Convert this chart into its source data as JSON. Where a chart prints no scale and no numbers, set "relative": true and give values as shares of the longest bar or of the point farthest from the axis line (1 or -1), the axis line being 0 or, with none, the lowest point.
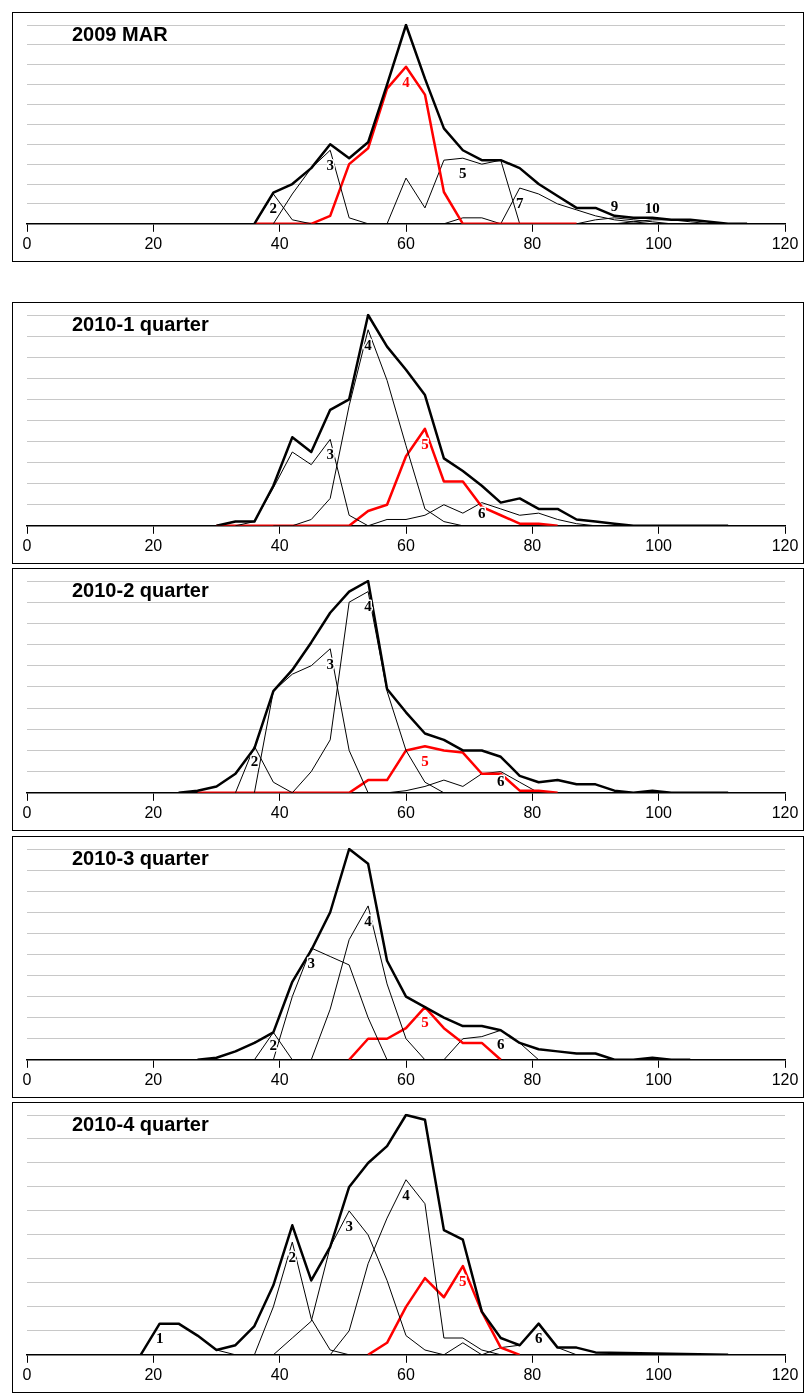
{
  "chart_data": [
    {
      "type": "line",
      "title": "2009 MAR",
      "relative": true,
      "xlim": [
        0,
        120
      ],
      "xticks": [
        0,
        20,
        40,
        60,
        80,
        100,
        120
      ],
      "grid": "y",
      "legend": false,
      "marker": "none",
      "line_style": "solid",
      "series": [
        {
          "color": "#000000",
          "x": [
            36,
            39,
            42,
            45,
            48,
            51,
            54,
            57,
            60,
            63,
            66,
            69,
            72,
            75,
            78,
            81,
            84,
            87,
            90,
            93,
            96,
            99,
            102,
            105,
            108,
            111,
            114
          ],
          "values": [
            0,
            0.157,
            0.2,
            0.28,
            0.4,
            0.33,
            0.41,
            0.7,
            1,
            0.73,
            0.48,
            0.37,
            0.32,
            0.32,
            0.28,
            0.2,
            0.14,
            0.08,
            0.08,
            0.04,
            0.03,
            0.03,
            0.02,
            0.02,
            0.01,
            0,
            0
          ]
        },
        {
          "name": "2",
          "color": "#000000",
          "x": [
            36,
            39,
            42,
            45
          ],
          "values": [
            0,
            0.15,
            0.02,
            0
          ]
        },
        {
          "name": "3",
          "color": "#000000",
          "x": [
            39,
            42,
            45,
            48,
            51,
            54
          ],
          "values": [
            0,
            0.15,
            0.28,
            0.37,
            0.03,
            0
          ]
        },
        {
          "name": "4",
          "color": "#ff0000",
          "x": [
            36,
            39,
            42,
            45,
            48,
            51,
            54,
            57,
            60,
            63,
            66,
            69,
            72,
            75,
            78,
            81,
            84,
            87
          ],
          "values": [
            0,
            0,
            0,
            0,
            0.04,
            0.3,
            0.38,
            0.68,
            0.79,
            0.65,
            0.16,
            0,
            0,
            0,
            0,
            0,
            0,
            0
          ]
        },
        {
          "name": "5",
          "color": "#000000",
          "x": [
            57,
            60,
            63,
            66,
            69,
            72,
            75,
            78
          ],
          "values": [
            0,
            0.23,
            0.08,
            0.32,
            0.33,
            0.3,
            0.32,
            0
          ]
        },
        {
          "color": "#000000",
          "x": [
            66,
            69,
            72,
            75
          ],
          "values": [
            0,
            0.03,
            0.03,
            0
          ]
        },
        {
          "name": "7",
          "color": "#000000",
          "x": [
            75,
            78,
            81,
            84,
            87,
            90,
            93,
            96,
            99
          ],
          "values": [
            0,
            0.18,
            0.15,
            0.1,
            0.07,
            0.04,
            0.02,
            0.01,
            0
          ]
        },
        {
          "name": "9",
          "color": "#000000",
          "x": [
            87,
            90,
            93,
            96,
            99,
            102
          ],
          "values": [
            0,
            0.02,
            0.03,
            0.02,
            0.01,
            0
          ]
        },
        {
          "name": "10",
          "color": "#000000",
          "x": [
            93,
            96,
            99,
            102,
            105,
            108
          ],
          "values": [
            0,
            0.01,
            0.02,
            0.02,
            0.01,
            0
          ]
        }
      ]
    },
    {
      "type": "line",
      "title": "2010-1 quarter",
      "relative": true,
      "xlim": [
        0,
        120
      ],
      "xticks": [
        0,
        20,
        40,
        60,
        80,
        100,
        120
      ],
      "grid": "y",
      "legend": false,
      "marker": "none",
      "line_style": "solid",
      "series": [
        {
          "color": "#000000",
          "x": [
            30,
            33,
            36,
            39,
            42,
            45,
            48,
            51,
            54,
            57,
            60,
            63,
            66,
            69,
            72,
            75,
            78,
            81,
            84,
            87,
            90,
            93,
            96,
            111
          ],
          "values": [
            0,
            0.02,
            0.02,
            0.19,
            0.42,
            0.35,
            0.55,
            0.6,
            1,
            0.85,
            0.74,
            0.62,
            0.32,
            0.26,
            0.19,
            0.11,
            0.13,
            0.08,
            0.08,
            0.03,
            0.02,
            0.01,
            0,
            0
          ]
        },
        {
          "name": "3",
          "color": "#000000",
          "x": [
            33,
            36,
            39,
            42,
            45,
            48,
            51,
            54
          ],
          "values": [
            0,
            0.02,
            0.18,
            0.35,
            0.29,
            0.41,
            0.05,
            0
          ]
        },
        {
          "name": "4",
          "color": "#000000",
          "x": [
            39,
            42,
            45,
            48,
            51,
            54,
            57,
            60,
            63,
            66,
            69
          ],
          "values": [
            0,
            0,
            0.03,
            0.13,
            0.57,
            0.93,
            0.69,
            0.38,
            0.08,
            0.02,
            0
          ]
        },
        {
          "name": "5",
          "color": "#ff0000",
          "x": [
            30,
            51,
            54,
            57,
            60,
            63,
            66,
            69,
            72,
            75,
            78,
            81,
            84
          ],
          "values": [
            0,
            0,
            0.07,
            0.1,
            0.33,
            0.46,
            0.21,
            0.21,
            0.09,
            0.05,
            0.01,
            0.01,
            0
          ]
        },
        {
          "name": "6",
          "color": "#000000",
          "x": [
            54,
            57,
            60,
            63,
            66,
            69,
            72,
            75,
            78,
            81,
            84,
            87,
            90
          ],
          "values": [
            0,
            0.03,
            0.03,
            0.05,
            0.1,
            0.06,
            0.11,
            0.08,
            0.05,
            0.06,
            0.03,
            0.01,
            0
          ]
        }
      ]
    },
    {
      "type": "line",
      "title": "2010-2 quarter",
      "relative": true,
      "xlim": [
        0,
        120
      ],
      "xticks": [
        0,
        20,
        40,
        60,
        80,
        100,
        120
      ],
      "grid": "y",
      "legend": false,
      "marker": "none",
      "line_style": "solid",
      "series": [
        {
          "color": "#000000",
          "x": [
            24,
            27,
            30,
            33,
            36,
            39,
            42,
            45,
            48,
            51,
            54,
            57,
            60,
            63,
            66,
            69,
            72,
            75,
            78,
            81,
            84,
            87,
            90,
            93,
            96,
            99,
            102,
            111
          ],
          "values": [
            0,
            0.01,
            0.03,
            0.09,
            0.21,
            0.48,
            0.58,
            0.71,
            0.85,
            0.95,
            1,
            0.49,
            0.38,
            0.28,
            0.25,
            0.2,
            0.2,
            0.17,
            0.08,
            0.05,
            0.06,
            0.04,
            0.04,
            0.01,
            0,
            0.01,
            0,
            0
          ]
        },
        {
          "name": "2",
          "color": "#000000",
          "x": [
            33,
            36,
            39,
            42
          ],
          "values": [
            0,
            0.22,
            0.05,
            0
          ]
        },
        {
          "name": "3",
          "color": "#000000",
          "x": [
            36,
            39,
            42,
            45,
            48,
            51,
            54
          ],
          "values": [
            0,
            0.48,
            0.56,
            0.6,
            0.68,
            0.2,
            0
          ]
        },
        {
          "name": "4",
          "color": "#000000",
          "x": [
            42,
            45,
            48,
            51,
            54,
            57,
            60,
            63,
            66
          ],
          "values": [
            0,
            0.1,
            0.25,
            0.9,
            0.95,
            0.48,
            0.2,
            0.05,
            0
          ]
        },
        {
          "name": "5",
          "color": "#ff0000",
          "x": [
            27,
            51,
            54,
            57,
            60,
            63,
            66,
            69,
            72,
            75,
            78,
            81,
            84
          ],
          "values": [
            0,
            0,
            0.06,
            0.06,
            0.2,
            0.22,
            0.2,
            0.19,
            0.09,
            0.09,
            0.01,
            0.01,
            0
          ]
        },
        {
          "name": "6",
          "color": "#000000",
          "x": [
            57,
            60,
            63,
            66,
            69,
            72,
            75,
            78,
            81
          ],
          "values": [
            0,
            0.01,
            0.03,
            0.06,
            0.03,
            0.09,
            0.1,
            0.05,
            0
          ]
        }
      ]
    },
    {
      "type": "line",
      "title": "2010-3 quarter",
      "relative": true,
      "xlim": [
        0,
        120
      ],
      "xticks": [
        0,
        20,
        40,
        60,
        80,
        100,
        120
      ],
      "grid": "y",
      "legend": false,
      "marker": "none",
      "line_style": "solid",
      "series": [
        {
          "color": "#000000",
          "x": [
            27,
            30,
            33,
            36,
            39,
            42,
            45,
            48,
            51,
            54,
            57,
            60,
            63,
            66,
            69,
            72,
            75,
            78,
            81,
            84,
            87,
            90,
            93,
            96,
            99,
            102,
            105
          ],
          "values": [
            0,
            0.01,
            0.04,
            0.08,
            0.13,
            0.37,
            0.52,
            0.7,
            1,
            0.93,
            0.47,
            0.3,
            0.25,
            0.2,
            0.16,
            0.16,
            0.14,
            0.08,
            0.05,
            0.04,
            0.03,
            0.03,
            0,
            0,
            0.01,
            0,
            0
          ]
        },
        {
          "name": "2",
          "color": "#000000",
          "x": [
            36,
            39,
            42
          ],
          "values": [
            0,
            0.13,
            0
          ]
        },
        {
          "name": "3",
          "color": "#000000",
          "x": [
            39,
            42,
            45,
            48,
            51,
            54,
            57
          ],
          "values": [
            0,
            0.3,
            0.53,
            0.49,
            0.45,
            0.2,
            0
          ]
        },
        {
          "name": "4",
          "color": "#000000",
          "x": [
            45,
            48,
            51,
            54,
            57,
            60,
            63
          ],
          "values": [
            0,
            0.24,
            0.57,
            0.73,
            0.36,
            0.1,
            0
          ]
        },
        {
          "name": "5",
          "color": "#ff0000",
          "x": [
            51,
            54,
            57,
            60,
            63,
            66,
            69,
            72,
            75
          ],
          "values": [
            0,
            0.1,
            0.1,
            0.15,
            0.25,
            0.15,
            0.08,
            0.08,
            0
          ]
        },
        {
          "name": "6",
          "color": "#000000",
          "x": [
            66,
            69,
            72,
            75,
            78,
            81
          ],
          "values": [
            0,
            0.1,
            0.11,
            0.14,
            0.08,
            0
          ]
        }
      ]
    },
    {
      "type": "line",
      "title": "2010-4 quarter",
      "relative": true,
      "xlim": [
        0,
        120
      ],
      "xticks": [
        0,
        20,
        40,
        60,
        80,
        100,
        120
      ],
      "grid": "y",
      "legend": false,
      "marker": "none",
      "line_style": "solid",
      "series": [
        {
          "color": "#000000",
          "x": [
            18,
            21,
            24,
            27,
            30,
            33,
            36,
            39,
            42,
            45,
            48,
            51,
            54,
            57,
            60,
            63,
            66,
            69,
            72,
            75,
            78,
            81,
            84,
            87,
            90,
            111
          ],
          "values": [
            0,
            0.13,
            0.13,
            0.08,
            0.02,
            0.04,
            0.12,
            0.29,
            0.54,
            0.31,
            0.45,
            0.7,
            0.8,
            0.87,
            1,
            0.98,
            0.52,
            0.48,
            0.18,
            0.07,
            0.04,
            0.13,
            0.03,
            0.03,
            0.01,
            0
          ]
        },
        {
          "name": "1",
          "color": "#000000",
          "x": [
            18,
            21,
            24,
            27,
            30,
            33
          ],
          "values": [
            0,
            0.13,
            0.13,
            0.08,
            0.02,
            0
          ]
        },
        {
          "name": "2",
          "color": "#000000",
          "x": [
            36,
            39,
            42,
            45,
            48,
            51
          ],
          "values": [
            0,
            0.2,
            0.47,
            0.15,
            0.02,
            0
          ]
        },
        {
          "name": "3",
          "color": "#000000",
          "x": [
            39,
            42,
            45,
            48,
            51,
            54,
            57,
            60,
            63,
            66
          ],
          "values": [
            0,
            0.07,
            0.14,
            0.45,
            0.6,
            0.5,
            0.31,
            0.08,
            0.02,
            0
          ]
        },
        {
          "name": "4",
          "color": "#000000",
          "x": [
            48,
            51,
            54,
            57,
            60,
            63,
            66,
            69,
            72,
            75
          ],
          "values": [
            0,
            0.1,
            0.38,
            0.57,
            0.73,
            0.63,
            0.07,
            0.07,
            0.02,
            0
          ]
        },
        {
          "name": "5",
          "color": "#ff0000",
          "x": [
            54,
            57,
            60,
            63,
            66,
            69,
            72,
            75,
            78
          ],
          "values": [
            0,
            0.05,
            0.2,
            0.32,
            0.24,
            0.37,
            0.18,
            0.03,
            0
          ]
        },
        {
          "name": "6",
          "color": "#000000",
          "x": [
            66,
            69,
            72,
            75,
            78,
            81,
            84,
            87
          ],
          "values": [
            0,
            0.05,
            0,
            0.03,
            0.04,
            0.13,
            0.03,
            0
          ]
        }
      ]
    }
  ]
}
